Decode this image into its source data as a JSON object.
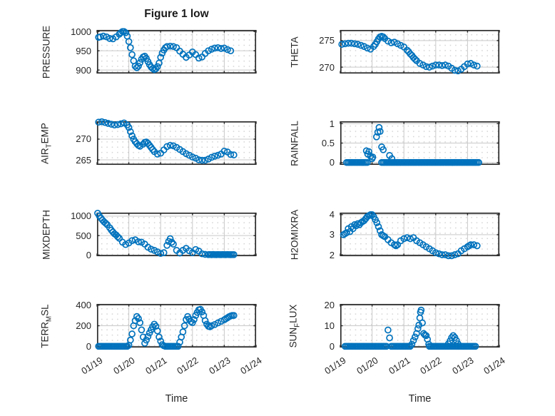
{
  "figure": {
    "title": "Figure 1 low"
  },
  "style": {
    "marker_color": "#0072BD",
    "axes_color": "#2a2a2a",
    "grid_color": "#c9c9c9",
    "minor_dot_color": "#d4d4d4",
    "text_color": "#262626",
    "background": "#ffffff"
  },
  "time_axis": {
    "label": "Time",
    "xlim": [
      0,
      5
    ],
    "ticks": [
      0,
      1,
      2,
      3,
      4,
      5
    ],
    "tick_labels": [
      "01/19",
      "01/20",
      "01/21",
      "01/22",
      "01/23",
      "01/24"
    ]
  },
  "chart_data": [
    {
      "id": "pressure",
      "type": "scatter",
      "row": 0,
      "col": 0,
      "label_parts": [
        {
          "t": "PRESSURE",
          "sub": false
        }
      ],
      "ylim": [
        891,
        1004
      ],
      "yticks": [
        900,
        950,
        1000
      ],
      "ytick_labels": [
        "900",
        "950",
        "1000"
      ],
      "x": [
        0.05,
        0.1,
        0.2,
        0.3,
        0.4,
        0.5,
        0.6,
        0.7,
        0.75,
        0.8,
        0.85,
        0.9,
        0.95,
        1.0,
        1.05,
        1.1,
        1.15,
        1.2,
        1.25,
        1.3,
        1.35,
        1.4,
        1.45,
        1.5,
        1.55,
        1.6,
        1.65,
        1.7,
        1.75,
        1.8,
        1.85,
        1.9,
        1.95,
        2.0,
        2.05,
        2.1,
        2.15,
        2.2,
        2.3,
        2.4,
        2.5,
        2.6,
        2.7,
        2.8,
        2.9,
        3.0,
        3.1,
        3.2,
        3.3,
        3.4,
        3.5,
        3.6,
        3.7,
        3.8,
        3.9,
        4.0,
        4.1,
        4.2
      ],
      "y": [
        985,
        986,
        988,
        986,
        982,
        981,
        986,
        993,
        997,
        1000,
        1000,
        997,
        988,
        974,
        958,
        940,
        924,
        910,
        906,
        910,
        919,
        928,
        934,
        936,
        930,
        922,
        914,
        908,
        904,
        901,
        903,
        909,
        918,
        933,
        944,
        952,
        958,
        961,
        962,
        961,
        958,
        949,
        941,
        933,
        939,
        947,
        940,
        931,
        934,
        943,
        950,
        954,
        957,
        958,
        956,
        957,
        953,
        950
      ]
    },
    {
      "id": "theta",
      "type": "scatter",
      "row": 0,
      "col": 1,
      "label_parts": [
        {
          "t": "THETA",
          "sub": false
        }
      ],
      "ylim": [
        268.8,
        277.0
      ],
      "yticks": [
        270,
        275
      ],
      "ytick_labels": [
        "270",
        "275"
      ],
      "x": [
        0.05,
        0.15,
        0.25,
        0.35,
        0.45,
        0.55,
        0.65,
        0.75,
        0.85,
        0.95,
        1.05,
        1.1,
        1.15,
        1.2,
        1.25,
        1.3,
        1.35,
        1.4,
        1.5,
        1.6,
        1.7,
        1.8,
        1.9,
        2.0,
        2.1,
        2.15,
        2.2,
        2.25,
        2.3,
        2.35,
        2.4,
        2.5,
        2.6,
        2.7,
        2.8,
        2.9,
        3.0,
        3.1,
        3.2,
        3.3,
        3.4,
        3.5,
        3.6,
        3.7,
        3.8,
        3.9,
        4.0,
        4.1,
        4.2,
        4.3
      ],
      "y": [
        274.3,
        274.4,
        274.5,
        274.5,
        274.4,
        274.3,
        274.1,
        273.9,
        273.6,
        273.4,
        273.9,
        274.3,
        274.8,
        275.3,
        275.7,
        275.8,
        275.7,
        275.4,
        274.9,
        274.6,
        274.7,
        274.4,
        274.1,
        273.8,
        273.2,
        272.9,
        272.5,
        272.2,
        271.8,
        271.5,
        271.2,
        270.7,
        270.4,
        270.1,
        270.0,
        270.2,
        270.4,
        270.4,
        270.3,
        270.4,
        270.2,
        269.8,
        269.4,
        269.3,
        269.6,
        270.1,
        270.6,
        270.7,
        270.4,
        270.2
      ]
    },
    {
      "id": "air-temp",
      "type": "scatter",
      "row": 1,
      "col": 0,
      "label_parts": [
        {
          "t": "AIR",
          "sub": false
        },
        {
          "t": "T",
          "sub": true
        },
        {
          "t": "EMP",
          "sub": false
        }
      ],
      "ylim": [
        263.8,
        274.3
      ],
      "yticks": [
        265,
        270
      ],
      "ytick_labels": [
        "265",
        "270"
      ],
      "x": [
        0.05,
        0.15,
        0.25,
        0.35,
        0.45,
        0.55,
        0.65,
        0.75,
        0.85,
        0.95,
        1.0,
        1.05,
        1.1,
        1.15,
        1.2,
        1.25,
        1.3,
        1.35,
        1.45,
        1.5,
        1.55,
        1.6,
        1.65,
        1.7,
        1.75,
        1.8,
        1.9,
        2.0,
        2.1,
        2.2,
        2.3,
        2.4,
        2.5,
        2.6,
        2.7,
        2.8,
        2.9,
        3.0,
        3.1,
        3.2,
        3.3,
        3.4,
        3.5,
        3.6,
        3.7,
        3.8,
        3.9,
        4.0,
        4.1,
        4.2,
        4.3
      ],
      "y": [
        274.1,
        274.2,
        274.0,
        273.8,
        273.6,
        273.4,
        273.5,
        273.7,
        273.9,
        273.4,
        272.8,
        271.8,
        270.8,
        270.0,
        269.4,
        268.9,
        268.5,
        268.3,
        268.8,
        269.2,
        269.3,
        269.0,
        268.5,
        268.0,
        267.5,
        267.0,
        266.4,
        266.6,
        267.4,
        268.2,
        268.5,
        268.4,
        268.0,
        267.5,
        267.0,
        266.5,
        266.1,
        265.7,
        265.4,
        265.0,
        264.9,
        264.9,
        265.2,
        265.6,
        265.9,
        266.1,
        266.4,
        267.1,
        266.9,
        266.3,
        266.2
      ]
    },
    {
      "id": "rainfall",
      "type": "scatter",
      "row": 1,
      "col": 1,
      "label_parts": [
        {
          "t": "RAINFALL",
          "sub": false
        }
      ],
      "ylim": [
        -0.06,
        1.06
      ],
      "yticks": [
        0,
        0.5,
        1
      ],
      "ytick_labels": [
        "0",
        "0.5",
        "1"
      ],
      "zero_runs": [
        [
          0.2,
          0.85
        ],
        [
          1.3,
          4.35
        ]
      ],
      "zero_step": 0.05,
      "x": [
        0.82,
        0.86,
        0.9,
        0.95,
        1.0,
        1.02,
        1.14,
        1.18,
        1.22,
        1.25,
        1.3,
        1.35,
        1.55,
        1.62
      ],
      "y": [
        0.3,
        0.22,
        0.28,
        0.16,
        0.1,
        0.14,
        0.66,
        0.78,
        0.9,
        0.8,
        0.4,
        0.33,
        0.18,
        0.1
      ]
    },
    {
      "id": "mixdepth",
      "type": "scatter",
      "row": 2,
      "col": 0,
      "label_parts": [
        {
          "t": "MIXDEPTH",
          "sub": false
        }
      ],
      "ylim": [
        -30,
        1090
      ],
      "yticks": [
        0,
        500,
        1000
      ],
      "ytick_labels": [
        "0",
        "500",
        "1000"
      ],
      "x": [
        0.02,
        0.07,
        0.12,
        0.17,
        0.22,
        0.27,
        0.32,
        0.4,
        0.45,
        0.5,
        0.55,
        0.6,
        0.65,
        0.7,
        0.8,
        0.9,
        1.0,
        1.1,
        1.2,
        1.3,
        1.4,
        1.5,
        1.6,
        1.7,
        1.8,
        1.9,
        2.0,
        2.1,
        2.2,
        2.25,
        2.3,
        2.35,
        2.4,
        2.5,
        2.6,
        2.7,
        2.8,
        2.9,
        3.0,
        3.1,
        3.2,
        3.3,
        3.4,
        3.5,
        3.55,
        3.6,
        3.65,
        3.7,
        3.75,
        3.8,
        3.85,
        3.9,
        3.95,
        4.0,
        4.05,
        4.1,
        4.15,
        4.2,
        4.25,
        4.3
      ],
      "y": [
        1075,
        1010,
        950,
        900,
        855,
        820,
        780,
        700,
        640,
        590,
        545,
        515,
        470,
        430,
        330,
        270,
        310,
        370,
        390,
        340,
        330,
        280,
        200,
        150,
        120,
        80,
        40,
        60,
        250,
        350,
        420,
        330,
        280,
        120,
        50,
        120,
        170,
        110,
        60,
        140,
        100,
        30,
        15,
        10,
        12,
        8,
        14,
        10,
        8,
        12,
        10,
        8,
        12,
        10,
        8,
        12,
        10,
        8,
        10,
        10
      ]
    },
    {
      "id": "h2omixra",
      "type": "scatter",
      "row": 2,
      "col": 1,
      "label_parts": [
        {
          "t": "H2OMIXRA",
          "sub": false
        }
      ],
      "ylim": [
        1.93,
        4.1
      ],
      "yticks": [
        2,
        3,
        4
      ],
      "ytick_labels": [
        "2",
        "3",
        "4"
      ],
      "x": [
        0.1,
        0.15,
        0.2,
        0.25,
        0.3,
        0.35,
        0.4,
        0.45,
        0.5,
        0.55,
        0.6,
        0.65,
        0.7,
        0.75,
        0.8,
        0.85,
        0.9,
        0.95,
        1.0,
        1.05,
        1.1,
        1.15,
        1.2,
        1.25,
        1.3,
        1.35,
        1.4,
        1.5,
        1.6,
        1.7,
        1.75,
        1.8,
        1.9,
        2.0,
        2.1,
        2.2,
        2.3,
        2.4,
        2.5,
        2.6,
        2.7,
        2.8,
        2.9,
        3.0,
        3.1,
        3.2,
        3.3,
        3.4,
        3.5,
        3.6,
        3.7,
        3.8,
        3.9,
        4.0,
        4.05,
        4.1,
        4.2,
        4.3
      ],
      "y": [
        3.0,
        3.05,
        3.1,
        3.3,
        3.15,
        3.4,
        3.3,
        3.5,
        3.45,
        3.55,
        3.5,
        3.6,
        3.65,
        3.7,
        3.8,
        3.9,
        3.95,
        4.0,
        4.0,
        3.9,
        3.75,
        3.6,
        3.4,
        3.2,
        3.0,
        2.95,
        2.9,
        2.75,
        2.6,
        2.5,
        2.45,
        2.5,
        2.7,
        2.8,
        2.85,
        2.8,
        2.85,
        2.7,
        2.6,
        2.5,
        2.4,
        2.3,
        2.2,
        2.1,
        2.05,
        2.0,
        2.0,
        1.95,
        1.95,
        2.0,
        2.05,
        2.2,
        2.3,
        2.4,
        2.45,
        2.5,
        2.5,
        2.45
      ]
    },
    {
      "id": "terr-msl",
      "type": "scatter",
      "row": 3,
      "col": 0,
      "label_parts": [
        {
          "t": "TERR",
          "sub": false
        },
        {
          "t": "M",
          "sub": true
        },
        {
          "t": "SL",
          "sub": false
        }
      ],
      "ylim": [
        -12,
        412
      ],
      "yticks": [
        0,
        200,
        400
      ],
      "ytick_labels": [
        "0",
        "200",
        "400"
      ],
      "zero_runs": [
        [
          0.05,
          0.95
        ],
        [
          2.15,
          2.55
        ]
      ],
      "zero_step": 0.05,
      "x": [
        1.0,
        1.05,
        1.1,
        1.15,
        1.2,
        1.25,
        1.3,
        1.35,
        1.4,
        1.45,
        1.5,
        1.55,
        1.6,
        1.65,
        1.7,
        1.75,
        1.8,
        1.85,
        1.9,
        1.95,
        2.0,
        2.05,
        2.1,
        2.6,
        2.65,
        2.7,
        2.75,
        2.8,
        2.85,
        2.9,
        2.95,
        3.0,
        3.05,
        3.1,
        3.15,
        3.2,
        3.25,
        3.3,
        3.35,
        3.4,
        3.45,
        3.5,
        3.55,
        3.6,
        3.7,
        3.8,
        3.9,
        4.0,
        4.05,
        4.1,
        4.15,
        4.2,
        4.25,
        4.3
      ],
      "y": [
        10,
        60,
        120,
        200,
        250,
        290,
        270,
        230,
        160,
        90,
        30,
        60,
        95,
        130,
        160,
        190,
        215,
        195,
        150,
        90,
        50,
        15,
        5,
        40,
        90,
        140,
        200,
        260,
        290,
        265,
        240,
        230,
        260,
        300,
        330,
        355,
        360,
        335,
        300,
        250,
        215,
        195,
        190,
        200,
        212,
        228,
        243,
        258,
        268,
        278,
        288,
        295,
        300,
        300
      ]
    },
    {
      "id": "sun-flux",
      "type": "scatter",
      "row": 3,
      "col": 1,
      "label_parts": [
        {
          "t": "SUN",
          "sub": false
        },
        {
          "t": "F",
          "sub": true
        },
        {
          "t": "LUX",
          "sub": false
        }
      ],
      "ylim": [
        -0.6,
        20.6
      ],
      "yticks": [
        0,
        10,
        20
      ],
      "ytick_labels": [
        "0",
        "10",
        "20"
      ],
      "zero_runs": [
        [
          0.15,
          1.45
        ],
        [
          1.6,
          2.2
        ],
        [
          2.8,
          4.25
        ]
      ],
      "zero_step": 0.05,
      "x": [
        1.5,
        1.55,
        2.25,
        2.3,
        2.35,
        2.4,
        2.44,
        2.47,
        2.5,
        2.52,
        2.54,
        2.58,
        2.62,
        2.66,
        2.7,
        2.74,
        2.78,
        3.4,
        3.45,
        3.5,
        3.55,
        3.6,
        3.65,
        3.7
      ],
      "y": [
        7.9,
        4.1,
        1.0,
        2.8,
        4.5,
        6.2,
        8.6,
        10.3,
        13.8,
        16.6,
        17.6,
        11.4,
        6.2,
        5.5,
        5.2,
        3.4,
        1.0,
        1.2,
        2.6,
        4.2,
        5.2,
        4.3,
        2.8,
        1.2
      ]
    }
  ]
}
